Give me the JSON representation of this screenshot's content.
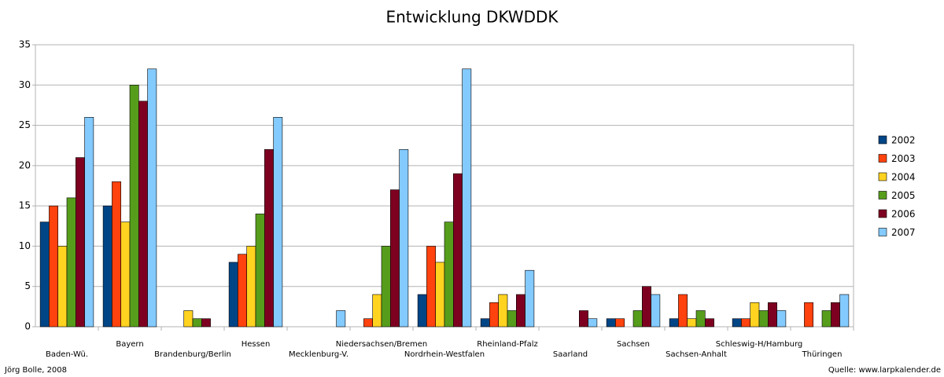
{
  "chart_data": {
    "type": "bar",
    "title": "Entwicklung DKWDDK",
    "categories": [
      "Baden-Wü.",
      "Bayern",
      "Brandenburg/Berlin",
      "Hessen",
      "Mecklenburg-V.",
      "Niedersachsen/Bremen",
      "Nordrhein-Westfalen",
      "Rheinland-Pfalz",
      "Saarland",
      "Sachsen",
      "Sachsen-Anhalt",
      "Schleswig-H/Hamburg",
      "Thüringen"
    ],
    "series": [
      {
        "name": "2002",
        "color": "#004586",
        "values": [
          13,
          15,
          0,
          8,
          0,
          0,
          4,
          1,
          0,
          1,
          1,
          1,
          0
        ]
      },
      {
        "name": "2003",
        "color": "#ff420e",
        "values": [
          15,
          18,
          0,
          9,
          0,
          1,
          10,
          3,
          0,
          1,
          4,
          1,
          3
        ]
      },
      {
        "name": "2004",
        "color": "#ffd320",
        "values": [
          10,
          13,
          2,
          10,
          0,
          4,
          8,
          4,
          0,
          0,
          1,
          3,
          0
        ]
      },
      {
        "name": "2005",
        "color": "#579d1c",
        "values": [
          16,
          30,
          1,
          14,
          0,
          10,
          13,
          2,
          0,
          2,
          2,
          2,
          2
        ]
      },
      {
        "name": "2006",
        "color": "#7e0021",
        "values": [
          21,
          28,
          1,
          22,
          0,
          17,
          19,
          4,
          2,
          5,
          1,
          3,
          3
        ]
      },
      {
        "name": "2007",
        "color": "#83caff",
        "values": [
          26,
          32,
          0,
          26,
          2,
          22,
          32,
          7,
          1,
          4,
          0,
          2,
          4
        ]
      }
    ],
    "ylim": [
      0,
      35
    ],
    "yticks": [
      0,
      5,
      10,
      15,
      20,
      25,
      30,
      35
    ],
    "grid": true,
    "legend": "right",
    "author": "Jörg Bolle, 2008",
    "source": "Quelle: www.larpkalender.de"
  }
}
